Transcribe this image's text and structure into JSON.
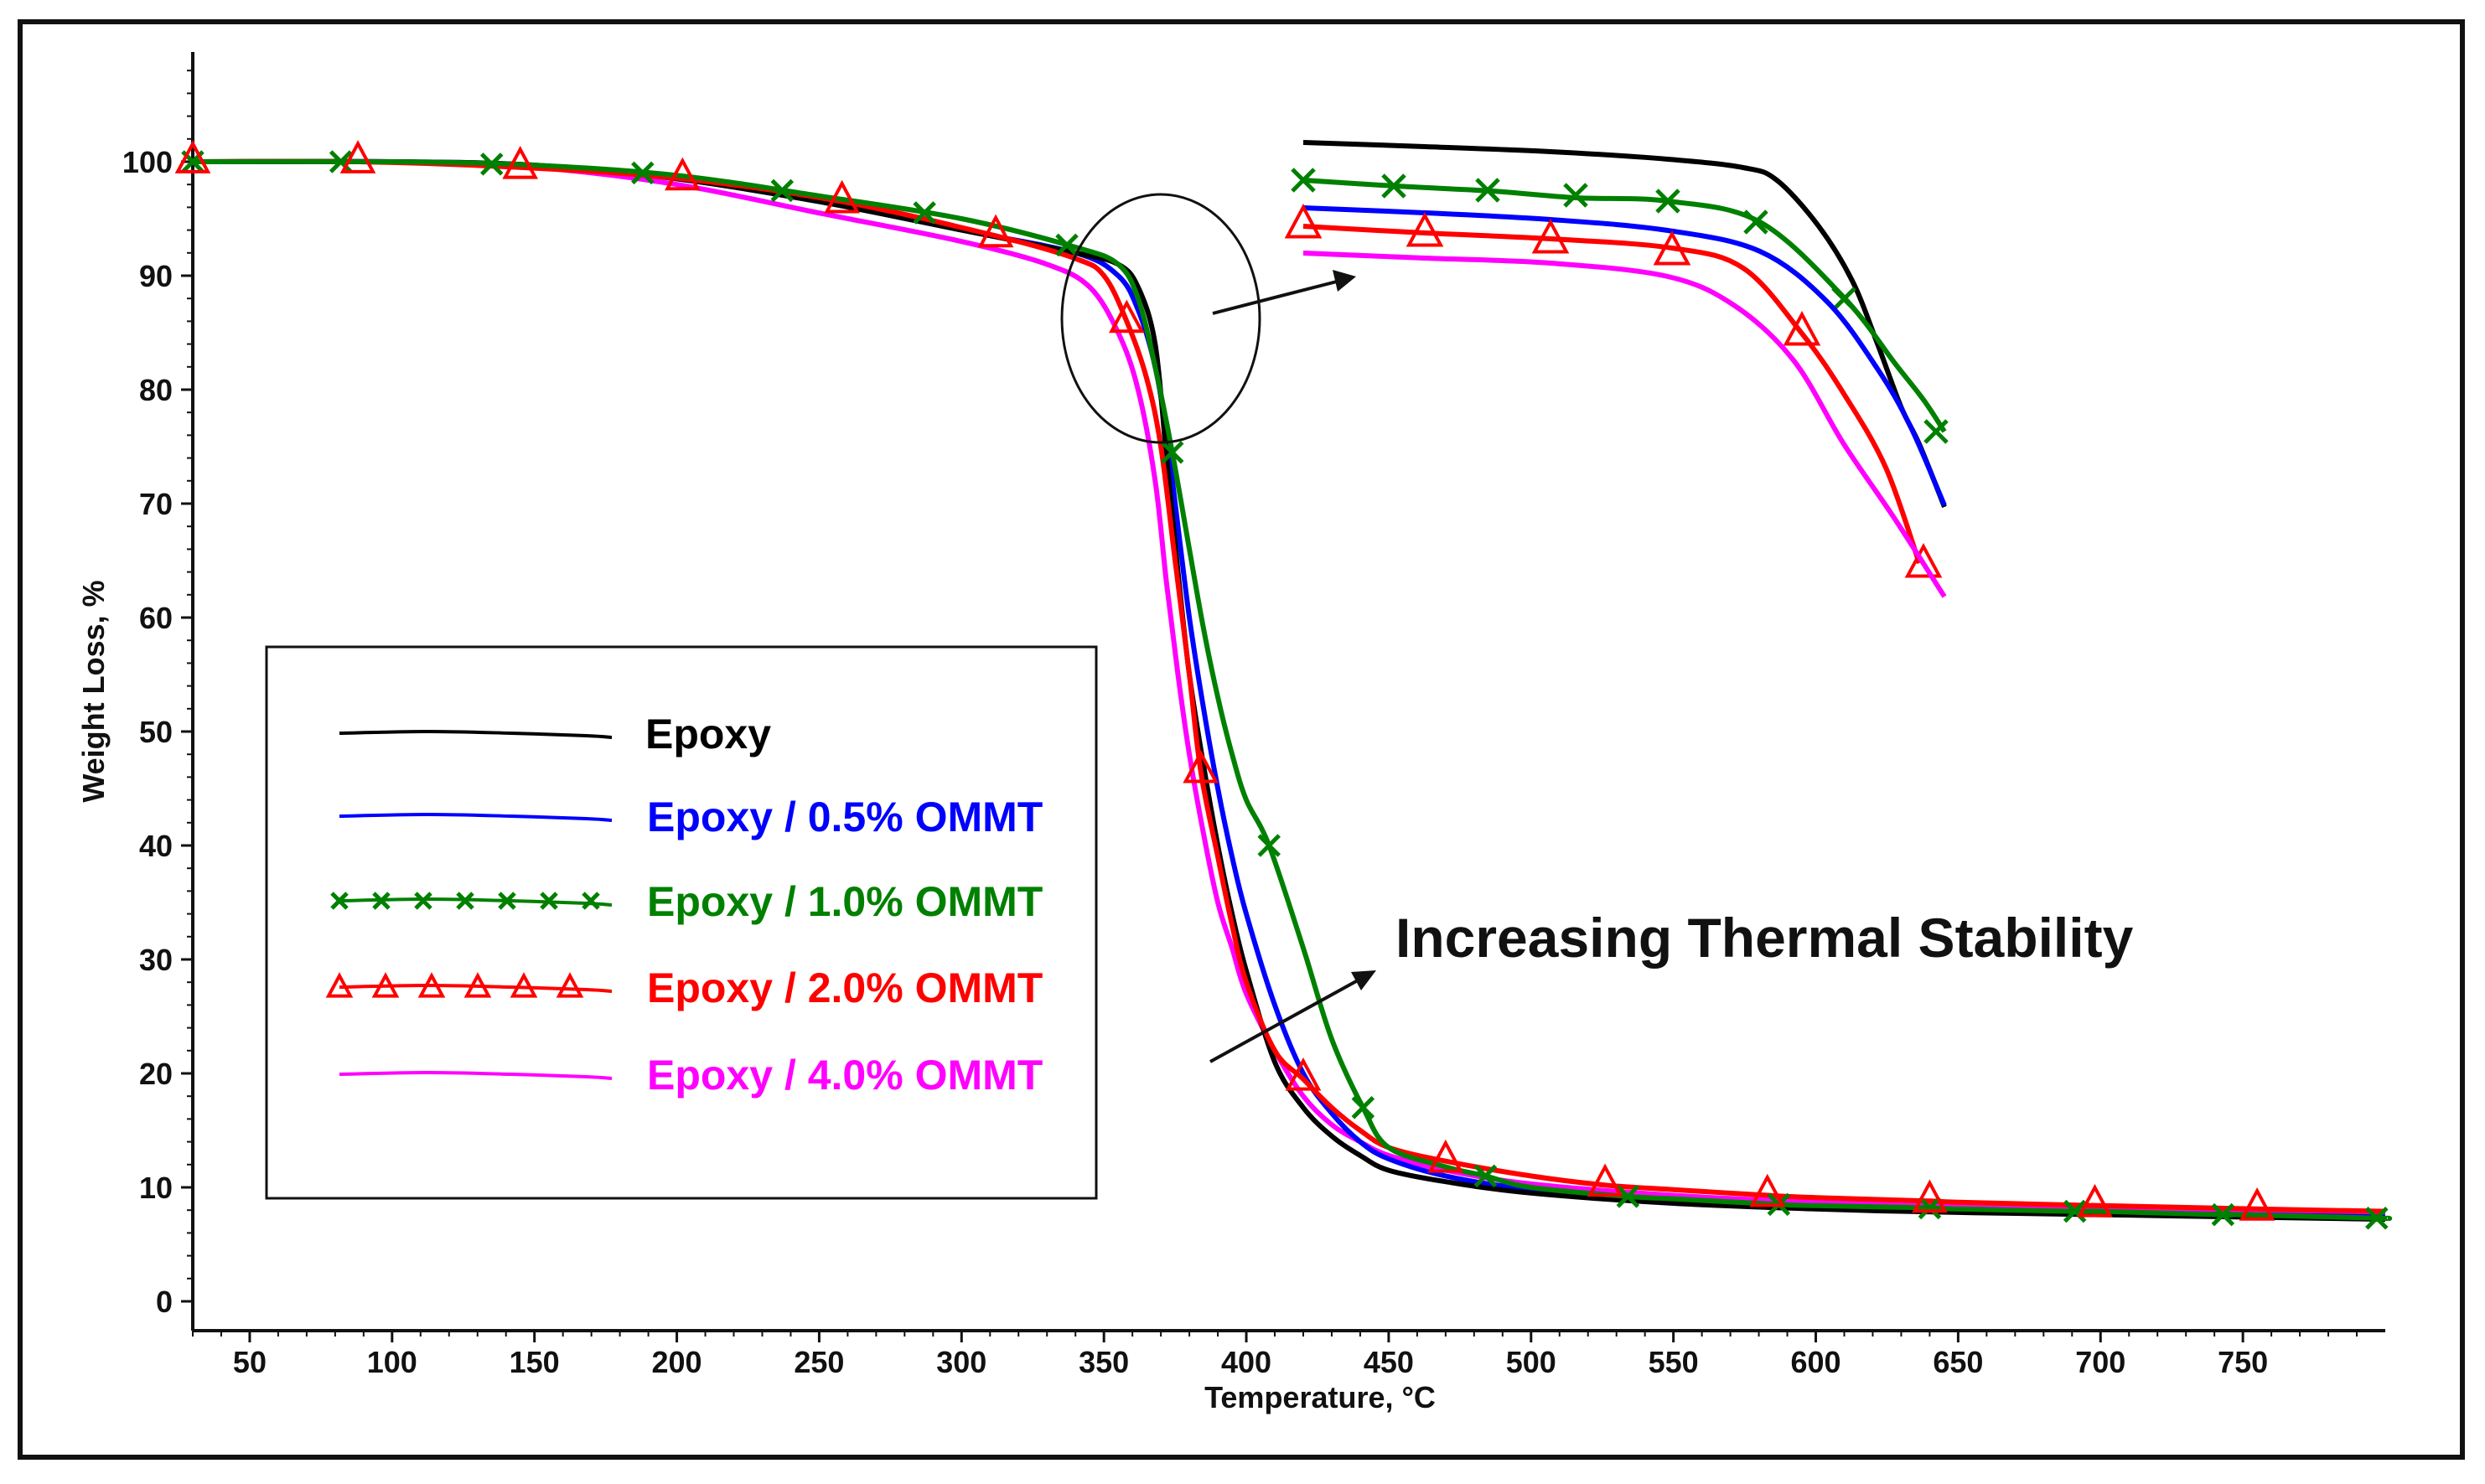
{
  "chart_data": {
    "type": "line",
    "title": "",
    "xlabel": "Temperature, °C",
    "ylabel": "Weight Loss, %",
    "xlim": [
      30,
      800
    ],
    "ylim": [
      0,
      110
    ],
    "x_ticks": [
      50,
      100,
      150,
      200,
      250,
      300,
      350,
      400,
      450,
      500,
      550,
      600,
      650,
      700,
      750
    ],
    "y_ticks": [
      0,
      10,
      20,
      30,
      40,
      50,
      60,
      70,
      80,
      90,
      100
    ],
    "grid": false,
    "legend_position": "left",
    "series": [
      {
        "name": "Epoxy",
        "color": "#000000",
        "marker": "none",
        "x": [
          30,
          100,
          150,
          200,
          250,
          300,
          340,
          355,
          362,
          368,
          372,
          376,
          380,
          385,
          390,
          395,
          400,
          410,
          420,
          430,
          440,
          450,
          470,
          500,
          550,
          600,
          650,
          700,
          750,
          800
        ],
        "y": [
          100,
          100,
          99.7,
          98.5,
          96.5,
          94,
          92,
          91,
          89,
          84,
          74,
          64,
          55,
          47,
          40,
          34,
          29,
          21,
          17,
          14.5,
          12.8,
          11.5,
          10.5,
          9.5,
          8.6,
          8.1,
          7.8,
          7.6,
          7.4,
          7.2
        ]
      },
      {
        "name": "Epoxy / 0.5% OMMT",
        "color": "#0000ff",
        "marker": "none",
        "x": [
          30,
          100,
          150,
          200,
          250,
          300,
          340,
          355,
          362,
          368,
          372,
          376,
          380,
          385,
          390,
          395,
          400,
          410,
          420,
          430,
          440,
          450,
          470,
          500,
          550,
          600,
          650,
          700,
          750,
          800
        ],
        "y": [
          100,
          100,
          99.7,
          98.5,
          96.5,
          94,
          92,
          90,
          87,
          82,
          76,
          68,
          60,
          52,
          45,
          39,
          34,
          26,
          20,
          16.5,
          14,
          12.5,
          11,
          9.8,
          8.8,
          8.3,
          8,
          7.8,
          7.6,
          7.4
        ]
      },
      {
        "name": "Epoxy / 1.0% OMMT",
        "color": "#008000",
        "marker": "x",
        "marker_x": [
          30,
          82,
          135,
          188,
          237,
          287,
          337,
          374,
          408,
          441,
          484,
          534,
          587,
          640,
          691,
          743,
          797
        ],
        "x": [
          30,
          100,
          150,
          200,
          250,
          300,
          340,
          355,
          362,
          368,
          374,
          380,
          385,
          390,
          395,
          400,
          408,
          420,
          430,
          441,
          450,
          470,
          484,
          500,
          534,
          550,
          587,
          600,
          640,
          650,
          691,
          700,
          743,
          750,
          797,
          800
        ],
        "y": [
          100,
          100,
          99.7,
          98.8,
          97,
          95,
          92.5,
          91,
          88,
          82,
          74.5,
          66,
          59,
          53,
          48,
          44,
          40,
          31,
          23,
          17,
          13.5,
          11.8,
          11,
          10,
          9.2,
          9,
          8.5,
          8.4,
          8.2,
          8.1,
          7.9,
          7.9,
          7.6,
          7.6,
          7.3,
          7.3
        ]
      },
      {
        "name": "Epoxy / 2.0% OMMT",
        "color": "#ff0000",
        "marker": "triangle",
        "marker_x": [
          30,
          88,
          145,
          202,
          258,
          312,
          358,
          384,
          420,
          470,
          526,
          583,
          640,
          698,
          755
        ],
        "x": [
          30,
          88,
          145,
          202,
          258,
          312,
          340,
          350,
          358,
          365,
          370,
          375,
          380,
          384,
          390,
          395,
          400,
          410,
          420,
          430,
          440,
          450,
          470,
          500,
          526,
          550,
          583,
          600,
          640,
          650,
          698,
          700,
          755,
          800
        ],
        "y": [
          100,
          100,
          99.5,
          98.5,
          96.5,
          93.5,
          91.5,
          90,
          86,
          81,
          75,
          65,
          55,
          46.5,
          39,
          33,
          28,
          22,
          19.5,
          17,
          15,
          13.5,
          12.3,
          11,
          10.2,
          9.8,
          9.3,
          9.1,
          8.8,
          8.7,
          8.4,
          8.4,
          8.1,
          7.9
        ]
      },
      {
        "name": "Epoxy / 4.0% OMMT",
        "color": "#ff00ff",
        "marker": "none",
        "x": [
          30,
          100,
          150,
          200,
          250,
          300,
          330,
          345,
          355,
          362,
          368,
          372,
          376,
          380,
          385,
          390,
          395,
          400,
          410,
          420,
          430,
          440,
          450,
          470,
          500,
          550,
          600,
          650,
          700,
          750,
          800
        ],
        "y": [
          100,
          100,
          99.5,
          98,
          95.5,
          93,
          91,
          89,
          85,
          80,
          72,
          63,
          55,
          48,
          41,
          35,
          31,
          27,
          22,
          18,
          15.5,
          14,
          12.8,
          11.5,
          10.3,
          9.3,
          8.7,
          8.4,
          8.2,
          8,
          7.8
        ]
      }
    ],
    "inset": {
      "description_none": true,
      "series_order": [
        "Epoxy",
        "Epoxy / 1.0% OMMT",
        "Epoxy / 0.5% OMMT",
        "Epoxy / 2.0% OMMT",
        "Epoxy / 4.0% OMMT"
      ]
    },
    "annotations": [
      {
        "text": "Increasing Thermal Stability"
      }
    ]
  }
}
